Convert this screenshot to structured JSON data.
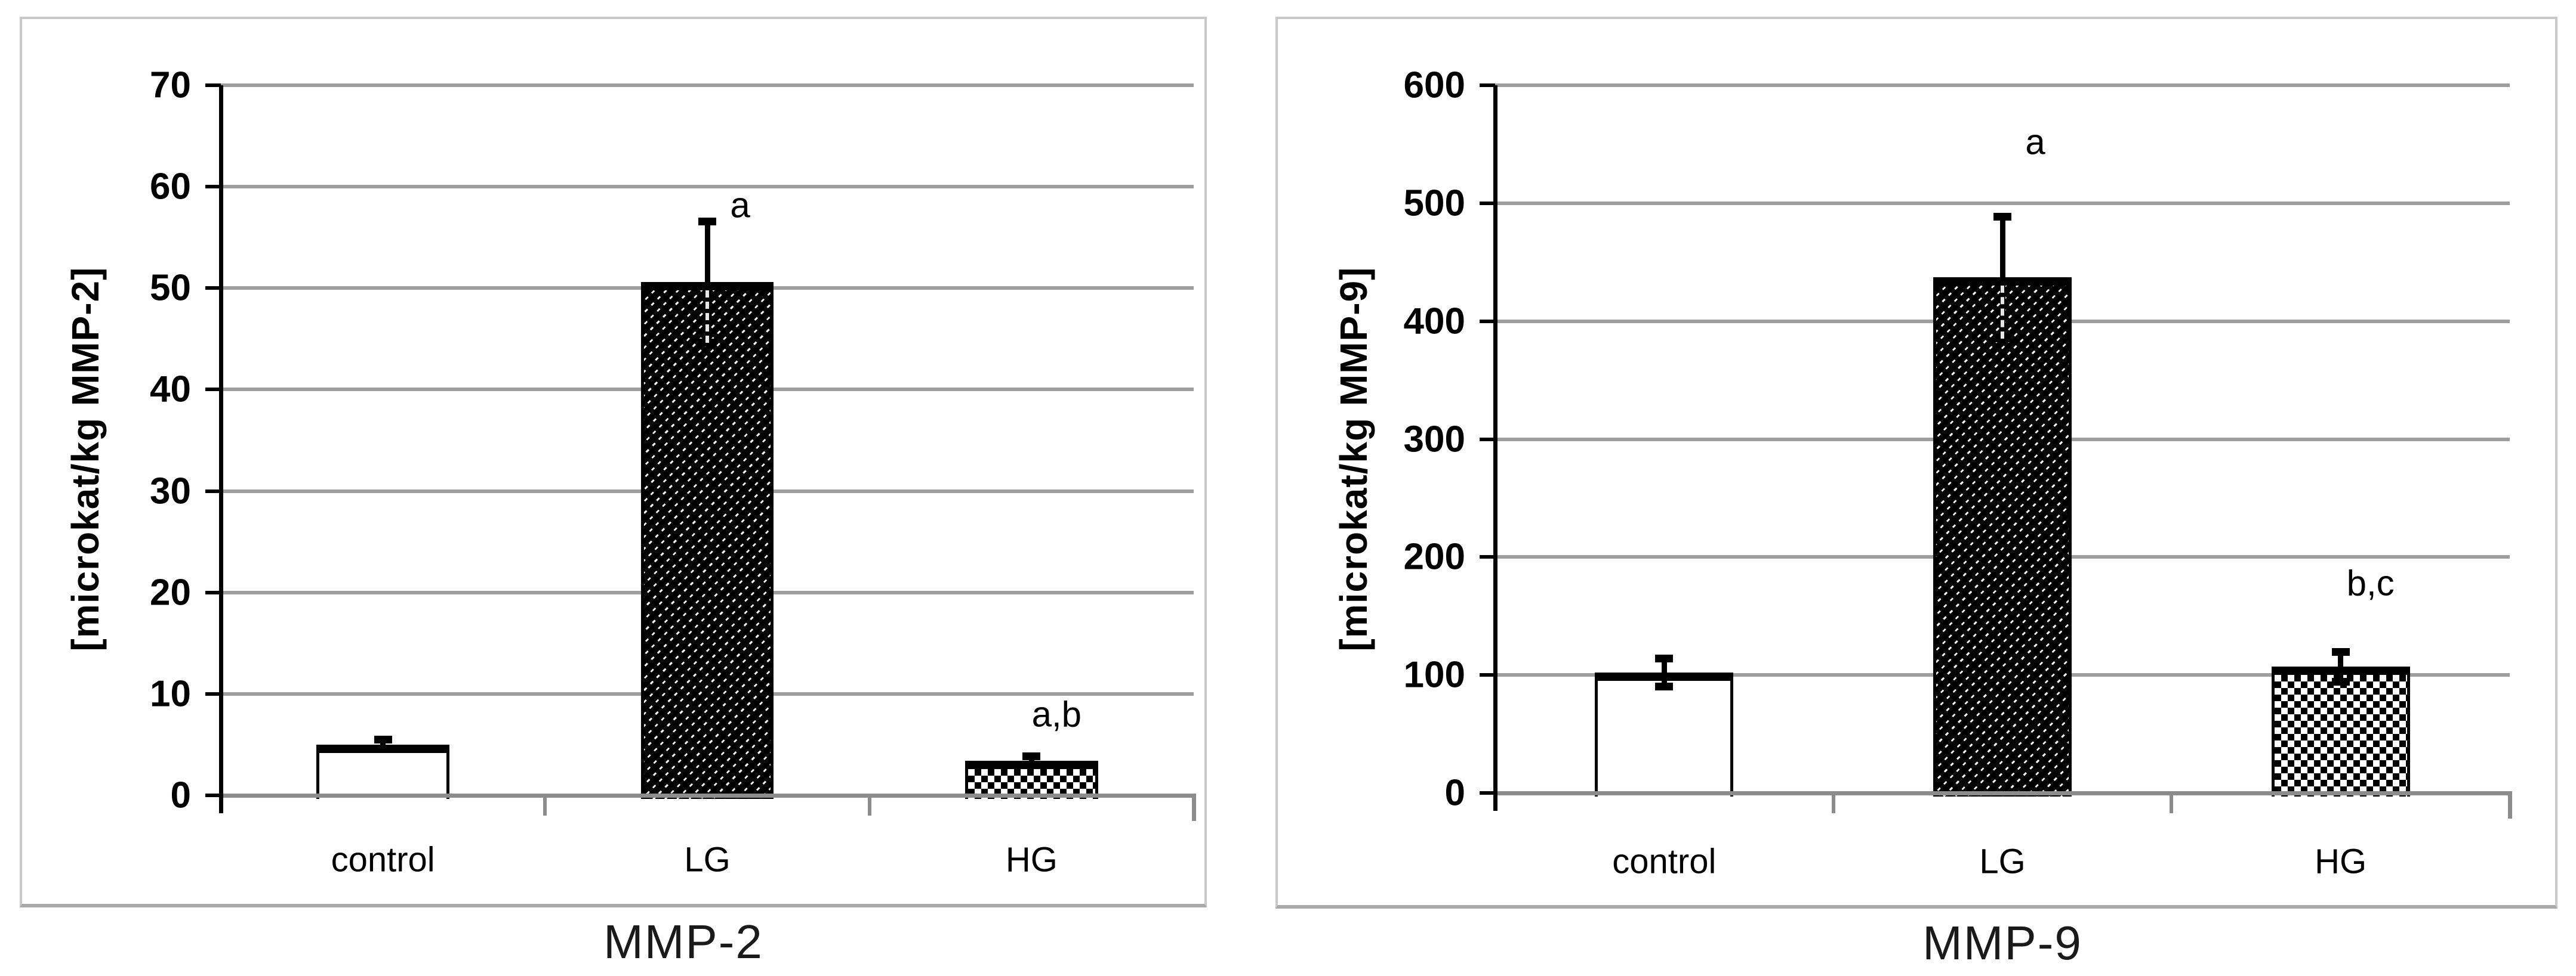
{
  "figure": {
    "background": "#ffffff",
    "panel_count": 2
  },
  "chart_data": [
    {
      "type": "bar",
      "title": "MMP-2",
      "ylabel": "[microkat/kg MMP-2]",
      "xlabel": "",
      "categories": [
        "control",
        "LG",
        "HG"
      ],
      "values": [
        5.0,
        50.6,
        3.4
      ],
      "errors": [
        0.5,
        6.0,
        0.45
      ],
      "bar_patterns": [
        "plain-white",
        "dense-diagonal-hatch",
        "checkerboard"
      ],
      "y_ticks": [
        0,
        10,
        20,
        30,
        40,
        50,
        60,
        70
      ],
      "ylim": [
        0,
        70
      ],
      "grid": "horizontal-on",
      "legend": "none",
      "annotations": [
        {
          "text": "a",
          "category": "LG",
          "category_index": 1,
          "value": 58.2,
          "dx": 55
        },
        {
          "text": "a,b",
          "category": "HG",
          "category_index": 2,
          "value": 8.0,
          "dx": 42
        }
      ]
    },
    {
      "type": "bar",
      "title": "MMP-9",
      "ylabel": "[microkat/kg MMP-9]",
      "xlabel": "",
      "categories": [
        "control",
        "LG",
        "HG"
      ],
      "values": [
        102,
        437,
        107
      ],
      "errors": [
        12,
        52,
        13
      ],
      "bar_patterns": [
        "plain-white",
        "dense-diagonal-hatch",
        "checkerboard"
      ],
      "y_ticks": [
        0,
        100,
        200,
        300,
        400,
        500,
        600
      ],
      "ylim": [
        0,
        600
      ],
      "grid": "horizontal-on",
      "legend": "none",
      "annotations": [
        {
          "text": "a",
          "category": "LG",
          "category_index": 1,
          "value": 552,
          "dx": 55
        },
        {
          "text": "b,c",
          "category": "HG",
          "category_index": 2,
          "value": 178,
          "dx": 50
        }
      ]
    }
  ],
  "colors": {
    "bar_outline": "#000000",
    "gridline": "#9e9e9e",
    "axis_gray": "#8c8c8c",
    "panel_border": "#c9c9c9",
    "text": "#000000",
    "background": "#ffffff"
  }
}
